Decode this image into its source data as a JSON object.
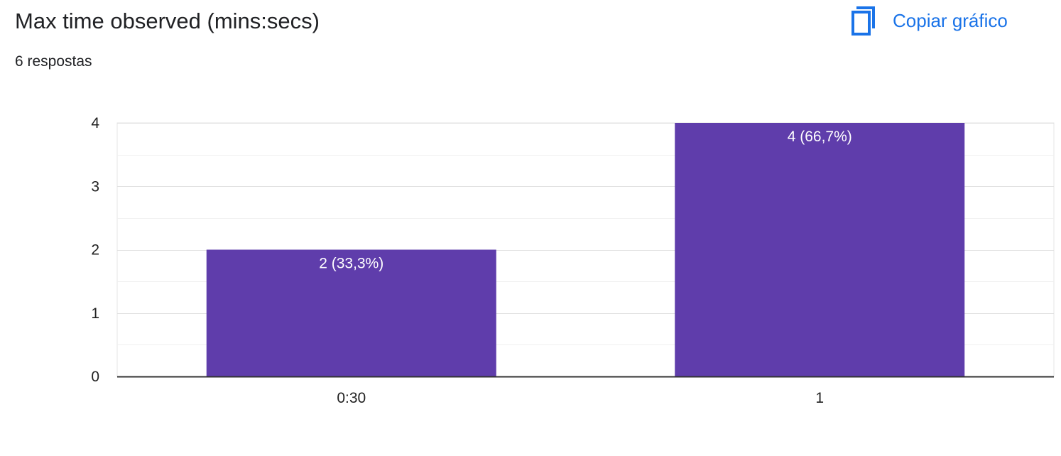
{
  "header": {
    "title": "Max time observed (mins:secs)",
    "responses": "6 respostas",
    "copy_label": "Copiar gráfico",
    "copy_icon": "copy-icon"
  },
  "colors": {
    "bar": "#5f3dab",
    "accent": "#1a73e8",
    "grid": "#e6e6e6",
    "axis": "#333333"
  },
  "chart_data": {
    "type": "bar",
    "categories": [
      "0:30",
      "1"
    ],
    "values": [
      2,
      4
    ],
    "data_labels": [
      "2 (33,3%)",
      "4 (66,7%)"
    ],
    "ylim": [
      0,
      4
    ],
    "yticks": [
      0,
      1,
      2,
      3,
      4
    ],
    "grid": true,
    "title": "",
    "xlabel": "",
    "ylabel": ""
  }
}
